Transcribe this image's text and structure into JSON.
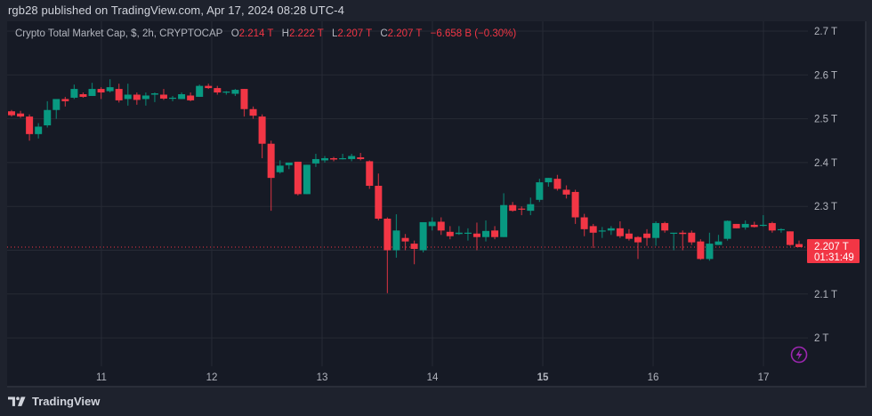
{
  "header": {
    "publish_line": "rgb28 published on TradingView.com, Apr 17, 2024 08:28 UTC-4"
  },
  "legend": {
    "symbol_desc": "Crypto Total Market Cap, $, 2h, CRYPTOCAP",
    "open_label": "O",
    "open_value": "2.214 T",
    "high_label": "H",
    "high_value": "2.222 T",
    "low_label": "L",
    "low_value": "2.207 T",
    "close_label": "C",
    "close_value": "2.207 T",
    "change": "−6.658 B (−0.30%)"
  },
  "price_badge": {
    "price": "2.207 T",
    "countdown": "01:31:49"
  },
  "footer": {
    "brand": "TradingView"
  },
  "icons": {
    "lightning": "lightning-icon",
    "logo": "tradingview-logo-icon"
  },
  "colors": {
    "up": "#089981",
    "down": "#f23645",
    "background": "#161a25",
    "frame": "#1e222d",
    "grid": "#262a35",
    "axis_text": "#b2b5be",
    "accent_purple": "#9c27b0"
  },
  "chart_data": {
    "type": "candlestick",
    "title": "Crypto Total Market Cap, $, 2h, CRYPTOCAP",
    "xlabel": "",
    "ylabel": "",
    "x_ticks": [
      "11",
      "12",
      "13",
      "14",
      "15",
      "16",
      "17"
    ],
    "y_ticks": [
      "2.7 T",
      "2.6 T",
      "2.5 T",
      "2.4 T",
      "2.3 T",
      "2.2 T",
      "2.1 T",
      "2 T"
    ],
    "y_tick_values": [
      2.7,
      2.6,
      2.5,
      2.4,
      2.3,
      2.2,
      2.1,
      2.0
    ],
    "ylim": [
      1.94,
      2.72
    ],
    "last_price": 2.207,
    "grid": true,
    "candles": [
      {
        "o": 2.517,
        "h": 2.52,
        "l": 2.505,
        "c": 2.508
      },
      {
        "o": 2.512,
        "h": 2.518,
        "l": 2.502,
        "c": 2.505
      },
      {
        "o": 2.505,
        "h": 2.51,
        "l": 2.45,
        "c": 2.465
      },
      {
        "o": 2.465,
        "h": 2.49,
        "l": 2.455,
        "c": 2.482
      },
      {
        "o": 2.485,
        "h": 2.54,
        "l": 2.48,
        "c": 2.52
      },
      {
        "o": 2.52,
        "h": 2.528,
        "l": 2.5,
        "c": 2.545
      },
      {
        "o": 2.545,
        "h": 2.55,
        "l": 2.528,
        "c": 2.54
      },
      {
        "o": 2.548,
        "h": 2.578,
        "l": 2.545,
        "c": 2.568
      },
      {
        "o": 2.556,
        "h": 2.56,
        "l": 2.548,
        "c": 2.55
      },
      {
        "o": 2.552,
        "h": 2.582,
        "l": 2.552,
        "c": 2.568
      },
      {
        "o": 2.568,
        "h": 2.572,
        "l": 2.545,
        "c": 2.56
      },
      {
        "o": 2.563,
        "h": 2.59,
        "l": 2.56,
        "c": 2.572
      },
      {
        "o": 2.568,
        "h": 2.58,
        "l": 2.537,
        "c": 2.542
      },
      {
        "o": 2.545,
        "h": 2.58,
        "l": 2.53,
        "c": 2.555
      },
      {
        "o": 2.555,
        "h": 2.56,
        "l": 2.532,
        "c": 2.543
      },
      {
        "o": 2.545,
        "h": 2.56,
        "l": 2.53,
        "c": 2.553
      },
      {
        "o": 2.555,
        "h": 2.56,
        "l": 2.538,
        "c": 2.558
      },
      {
        "o": 2.555,
        "h": 2.568,
        "l": 2.543,
        "c": 2.546
      },
      {
        "o": 2.548,
        "h": 2.552,
        "l": 2.54,
        "c": 2.548
      },
      {
        "o": 2.545,
        "h": 2.56,
        "l": 2.545,
        "c": 2.556
      },
      {
        "o": 2.553,
        "h": 2.56,
        "l": 2.54,
        "c": 2.542
      },
      {
        "o": 2.55,
        "h": 2.578,
        "l": 2.55,
        "c": 2.575
      },
      {
        "o": 2.575,
        "h": 2.58,
        "l": 2.568,
        "c": 2.57
      },
      {
        "o": 2.57,
        "h": 2.575,
        "l": 2.555,
        "c": 2.56
      },
      {
        "o": 2.56,
        "h": 2.563,
        "l": 2.555,
        "c": 2.562
      },
      {
        "o": 2.557,
        "h": 2.568,
        "l": 2.552,
        "c": 2.566
      },
      {
        "o": 2.568,
        "h": 2.568,
        "l": 2.505,
        "c": 2.522
      },
      {
        "o": 2.522,
        "h": 2.528,
        "l": 2.5,
        "c": 2.507
      },
      {
        "o": 2.505,
        "h": 2.51,
        "l": 2.41,
        "c": 2.443
      },
      {
        "o": 2.443,
        "h": 2.45,
        "l": 2.29,
        "c": 2.365
      },
      {
        "o": 2.378,
        "h": 2.405,
        "l": 2.375,
        "c": 2.393
      },
      {
        "o": 2.394,
        "h": 2.4,
        "l": 2.385,
        "c": 2.4
      },
      {
        "o": 2.402,
        "h": 2.402,
        "l": 2.325,
        "c": 2.328
      },
      {
        "o": 2.328,
        "h": 2.395,
        "l": 2.328,
        "c": 2.395
      },
      {
        "o": 2.398,
        "h": 2.42,
        "l": 2.39,
        "c": 2.408
      },
      {
        "o": 2.405,
        "h": 2.415,
        "l": 2.4,
        "c": 2.41
      },
      {
        "o": 2.41,
        "h": 2.413,
        "l": 2.403,
        "c": 2.407
      },
      {
        "o": 2.408,
        "h": 2.42,
        "l": 2.407,
        "c": 2.41
      },
      {
        "o": 2.408,
        "h": 2.42,
        "l": 2.403,
        "c": 2.415
      },
      {
        "o": 2.412,
        "h": 2.422,
        "l": 2.405,
        "c": 2.408
      },
      {
        "o": 2.403,
        "h": 2.405,
        "l": 2.34,
        "c": 2.347
      },
      {
        "o": 2.347,
        "h": 2.375,
        "l": 2.268,
        "c": 2.272
      },
      {
        "o": 2.272,
        "h": 2.275,
        "l": 2.102,
        "c": 2.2
      },
      {
        "o": 2.2,
        "h": 2.282,
        "l": 2.183,
        "c": 2.245
      },
      {
        "o": 2.228,
        "h": 2.237,
        "l": 2.2,
        "c": 2.22
      },
      {
        "o": 2.215,
        "h": 2.222,
        "l": 2.168,
        "c": 2.203
      },
      {
        "o": 2.2,
        "h": 2.26,
        "l": 2.195,
        "c": 2.264
      },
      {
        "o": 2.255,
        "h": 2.275,
        "l": 2.245,
        "c": 2.265
      },
      {
        "o": 2.265,
        "h": 2.275,
        "l": 2.235,
        "c": 2.245
      },
      {
        "o": 2.242,
        "h": 2.255,
        "l": 2.225,
        "c": 2.232
      },
      {
        "o": 2.237,
        "h": 2.255,
        "l": 2.235,
        "c": 2.24
      },
      {
        "o": 2.24,
        "h": 2.25,
        "l": 2.222,
        "c": 2.24
      },
      {
        "o": 2.238,
        "h": 2.263,
        "l": 2.2,
        "c": 2.23
      },
      {
        "o": 2.23,
        "h": 2.268,
        "l": 2.22,
        "c": 2.244
      },
      {
        "o": 2.245,
        "h": 2.255,
        "l": 2.225,
        "c": 2.23
      },
      {
        "o": 2.23,
        "h": 2.33,
        "l": 2.23,
        "c": 2.303
      },
      {
        "o": 2.303,
        "h": 2.31,
        "l": 2.288,
        "c": 2.29
      },
      {
        "o": 2.295,
        "h": 2.3,
        "l": 2.28,
        "c": 2.293
      },
      {
        "o": 2.29,
        "h": 2.32,
        "l": 2.28,
        "c": 2.305
      },
      {
        "o": 2.315,
        "h": 2.363,
        "l": 2.31,
        "c": 2.355
      },
      {
        "o": 2.355,
        "h": 2.365,
        "l": 2.345,
        "c": 2.365
      },
      {
        "o": 2.363,
        "h": 2.372,
        "l": 2.336,
        "c": 2.34
      },
      {
        "o": 2.338,
        "h": 2.348,
        "l": 2.318,
        "c": 2.327
      },
      {
        "o": 2.333,
        "h": 2.338,
        "l": 2.26,
        "c": 2.275
      },
      {
        "o": 2.275,
        "h": 2.283,
        "l": 2.232,
        "c": 2.248
      },
      {
        "o": 2.255,
        "h": 2.26,
        "l": 2.205,
        "c": 2.24
      },
      {
        "o": 2.245,
        "h": 2.253,
        "l": 2.228,
        "c": 2.245
      },
      {
        "o": 2.245,
        "h": 2.255,
        "l": 2.235,
        "c": 2.25
      },
      {
        "o": 2.25,
        "h": 2.266,
        "l": 2.228,
        "c": 2.232
      },
      {
        "o": 2.238,
        "h": 2.248,
        "l": 2.222,
        "c": 2.226
      },
      {
        "o": 2.23,
        "h": 2.232,
        "l": 2.18,
        "c": 2.218
      },
      {
        "o": 2.238,
        "h": 2.248,
        "l": 2.21,
        "c": 2.228
      },
      {
        "o": 2.228,
        "h": 2.266,
        "l": 2.21,
        "c": 2.262
      },
      {
        "o": 2.262,
        "h": 2.265,
        "l": 2.24,
        "c": 2.245
      },
      {
        "o": 2.24,
        "h": 2.238,
        "l": 2.2,
        "c": 2.24
      },
      {
        "o": 2.24,
        "h": 2.245,
        "l": 2.2,
        "c": 2.237
      },
      {
        "o": 2.24,
        "h": 2.245,
        "l": 2.212,
        "c": 2.218
      },
      {
        "o": 2.22,
        "h": 2.225,
        "l": 2.178,
        "c": 2.18
      },
      {
        "o": 2.18,
        "h": 2.24,
        "l": 2.176,
        "c": 2.215
      },
      {
        "o": 2.212,
        "h": 2.235,
        "l": 2.212,
        "c": 2.22
      },
      {
        "o": 2.226,
        "h": 2.268,
        "l": 2.222,
        "c": 2.267
      },
      {
        "o": 2.26,
        "h": 2.26,
        "l": 2.25,
        "c": 2.25
      },
      {
        "o": 2.252,
        "h": 2.268,
        "l": 2.247,
        "c": 2.26
      },
      {
        "o": 2.258,
        "h": 2.265,
        "l": 2.252,
        "c": 2.253
      },
      {
        "o": 2.256,
        "h": 2.28,
        "l": 2.254,
        "c": 2.258
      },
      {
        "o": 2.262,
        "h": 2.265,
        "l": 2.24,
        "c": 2.245
      },
      {
        "o": 2.248,
        "h": 2.25,
        "l": 2.24,
        "c": 2.248
      },
      {
        "o": 2.243,
        "h": 2.243,
        "l": 2.21,
        "c": 2.212
      },
      {
        "o": 2.214,
        "h": 2.222,
        "l": 2.207,
        "c": 2.207
      }
    ]
  }
}
